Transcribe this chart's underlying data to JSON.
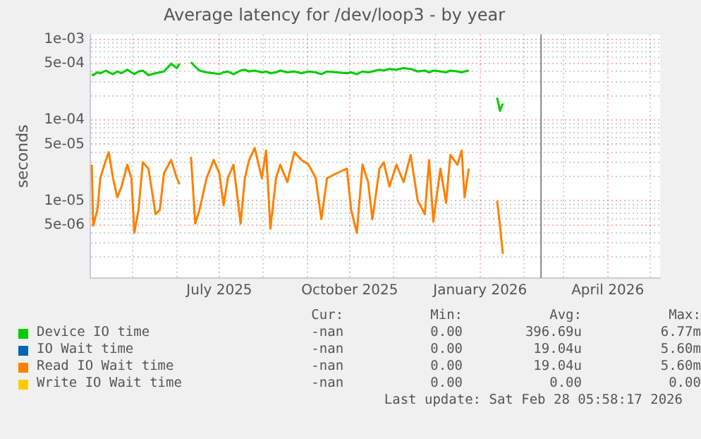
{
  "chart_data": {
    "type": "line",
    "title": "Average latency for /dev/loop3 - by year",
    "ylabel": "seconds",
    "x": [
      "2025-04-02",
      "2025-04-03",
      "2025-04-06",
      "2025-04-08",
      "2025-04-12",
      "2025-04-14",
      "2025-04-17",
      "2025-04-20",
      "2025-04-23",
      "2025-04-27",
      "2025-04-30",
      "2025-05-02",
      "2025-05-05",
      "2025-05-08",
      "2025-05-12",
      "2025-05-17",
      "2025-05-20",
      "2025-05-23",
      "2025-05-28",
      "2025-06-01",
      "2025-06-03",
      "2025-06-07",
      "2025-06-11",
      "2025-06-14",
      "2025-06-17",
      "2025-06-22",
      "2025-06-27",
      "2025-07-01",
      "2025-07-04",
      "2025-07-07",
      "2025-07-11",
      "2025-07-16",
      "2025-07-19",
      "2025-07-22",
      "2025-07-26",
      "2025-07-31",
      "2025-08-03",
      "2025-08-06",
      "2025-08-10",
      "2025-08-13",
      "2025-08-18",
      "2025-08-23",
      "2025-08-28",
      "2025-09-02",
      "2025-09-07",
      "2025-09-11",
      "2025-09-15",
      "2025-09-22",
      "2025-09-29",
      "2025-10-02",
      "2025-10-06",
      "2025-10-10",
      "2025-10-14",
      "2025-10-17",
      "2025-10-22",
      "2025-10-25",
      "2025-10-29",
      "2025-11-03",
      "2025-11-08",
      "2025-11-13",
      "2025-11-18",
      "2025-11-23",
      "2025-11-26",
      "2025-11-29",
      "2025-12-04",
      "2025-12-08",
      "2025-12-11",
      "2025-12-16",
      "2025-12-19",
      "2025-12-21",
      "2025-12-24",
      "2026-01-05",
      "2026-01-13",
      "2026-01-15",
      "2026-01-17"
    ],
    "series": [
      {
        "name": "Device IO time",
        "color": "#00cc00",
        "values": [
          0.00037,
          0.00036,
          0.00039,
          0.00038,
          0.00041,
          0.00039,
          0.00037,
          0.0004,
          0.00038,
          0.00042,
          0.00039,
          0.00037,
          0.0004,
          0.00041,
          0.00036,
          0.00038,
          0.00039,
          0.0004,
          0.0005,
          0.00044,
          0.0005,
          null,
          0.00052,
          0.00046,
          0.00041,
          0.00039,
          0.00038,
          0.00037,
          0.00039,
          0.0004,
          0.00037,
          0.00041,
          0.00042,
          0.0004,
          0.00041,
          0.00039,
          0.0004,
          0.00038,
          0.00039,
          0.00041,
          0.00039,
          0.0004,
          0.00038,
          0.0004,
          0.00039,
          0.00037,
          0.0004,
          0.00039,
          0.00038,
          0.00039,
          0.00037,
          0.0004,
          0.00039,
          0.0004,
          0.00042,
          0.00041,
          0.00043,
          0.00042,
          0.00044,
          0.00043,
          0.0004,
          0.00041,
          0.00039,
          0.00041,
          0.0004,
          0.00039,
          0.00041,
          0.0004,
          0.00039,
          0.0004,
          0.00041,
          null,
          0.00019,
          0.00013,
          0.00016
        ]
      },
      {
        "name": "IO Wait time",
        "color": "#0066b3",
        "values": [
          null,
          null,
          null,
          null,
          null,
          null,
          null,
          null,
          null,
          null,
          null,
          null,
          null,
          null,
          null,
          null,
          null,
          null,
          null,
          null,
          null,
          null,
          null,
          null,
          null,
          null,
          null,
          null,
          null,
          null,
          null,
          null,
          null,
          null,
          null,
          null,
          null,
          null,
          null,
          null,
          null,
          null,
          null,
          null,
          null,
          null,
          null,
          null,
          null,
          null,
          null,
          null,
          null,
          null,
          null,
          null,
          null,
          null,
          null,
          null,
          null,
          null,
          null,
          null,
          null,
          null,
          null,
          null,
          null,
          null,
          null,
          null,
          null,
          null,
          null
        ]
      },
      {
        "name": "Read IO Wait time",
        "color": "#ff8000",
        "values": [
          2.8e-05,
          4.9e-06,
          7.7e-06,
          1.9e-05,
          3.2e-05,
          4e-05,
          1.9e-05,
          1.1e-05,
          1.5e-05,
          2.8e-05,
          1.9e-05,
          4e-06,
          7.7e-06,
          3e-05,
          2.5e-05,
          6.8e-06,
          7.7e-06,
          2.2e-05,
          3.2e-05,
          1.9e-05,
          1.6e-05,
          null,
          3.5e-05,
          5.2e-06,
          7.7e-06,
          1.9e-05,
          3.2e-05,
          2.2e-05,
          8.8e-06,
          1.9e-05,
          2.8e-05,
          5.2e-06,
          1.9e-05,
          3.2e-05,
          4.5e-05,
          1.9e-05,
          4.2e-05,
          4.5e-06,
          1.9e-05,
          2.8e-05,
          1.7e-05,
          4e-05,
          3.2e-05,
          2.8e-05,
          1.9e-05,
          5.9e-06,
          1.9e-05,
          2.2e-05,
          2.5e-05,
          7.7e-06,
          4e-06,
          2.8e-05,
          1.7e-05,
          5.9e-06,
          2.5e-05,
          3e-05,
          1.5e-05,
          2.8e-05,
          1.7e-05,
          3.7e-05,
          1e-05,
          6.8e-06,
          3.2e-05,
          5.5e-06,
          2.5e-05,
          9.4e-06,
          3.7e-05,
          2.8e-05,
          4.2e-05,
          1.1e-05,
          2.5e-05,
          null,
          1e-05,
          5e-06,
          2.2e-06
        ]
      },
      {
        "name": "Write IO Wait time",
        "color": "#ffcc00",
        "values": [
          null,
          null,
          null,
          null,
          null,
          null,
          null,
          null,
          null,
          null,
          null,
          null,
          null,
          null,
          null,
          null,
          null,
          null,
          null,
          null,
          null,
          null,
          null,
          null,
          null,
          null,
          null,
          null,
          null,
          null,
          null,
          null,
          null,
          null,
          null,
          null,
          null,
          null,
          null,
          null,
          null,
          null,
          null,
          null,
          null,
          null,
          null,
          null,
          null,
          null,
          null,
          null,
          null,
          null,
          null,
          null,
          null,
          null,
          null,
          null,
          null,
          null,
          null,
          null,
          null,
          null,
          null,
          null,
          null,
          null,
          null,
          null,
          null,
          null,
          null
        ]
      }
    ],
    "xlim": [
      "2025-04-01",
      "2026-05-08"
    ],
    "xticks": [
      {
        "value": "2025-05-01",
        "label": null
      },
      {
        "value": "2025-06-01",
        "label": null
      },
      {
        "value": "2025-07-01",
        "label": "July 2025"
      },
      {
        "value": "2025-08-01",
        "label": null
      },
      {
        "value": "2025-09-01",
        "label": null
      },
      {
        "value": "2025-10-01",
        "label": "October 2025"
      },
      {
        "value": "2025-11-01",
        "label": null
      },
      {
        "value": "2025-12-01",
        "label": null
      },
      {
        "value": "2026-01-01",
        "label": "January 2026"
      },
      {
        "value": "2026-02-01",
        "label": null
      },
      {
        "value": "2026-03-01",
        "label": null
      },
      {
        "value": "2026-04-01",
        "label": "April 2026"
      },
      {
        "value": "2026-05-01",
        "label": null
      }
    ],
    "ylim": [
      1.1e-06,
      0.00115
    ],
    "yticks": [
      {
        "value": 2e-06,
        "label": null
      },
      {
        "value": 3e-06,
        "label": null
      },
      {
        "value": 4e-06,
        "label": null
      },
      {
        "value": 5e-06,
        "label": "5e-06"
      },
      {
        "value": 6e-06,
        "label": null
      },
      {
        "value": 7e-06,
        "label": null
      },
      {
        "value": 8e-06,
        "label": null
      },
      {
        "value": 9e-06,
        "label": null
      },
      {
        "value": 1e-05,
        "label": "1e-05"
      },
      {
        "value": 2e-05,
        "label": null
      },
      {
        "value": 3e-05,
        "label": null
      },
      {
        "value": 4e-05,
        "label": null
      },
      {
        "value": 5e-05,
        "label": "5e-05"
      },
      {
        "value": 6e-05,
        "label": null
      },
      {
        "value": 7e-05,
        "label": null
      },
      {
        "value": 8e-05,
        "label": null
      },
      {
        "value": 9e-05,
        "label": null
      },
      {
        "value": 0.0001,
        "label": "1e-04"
      },
      {
        "value": 0.0002,
        "label": null
      },
      {
        "value": 0.0003,
        "label": null
      },
      {
        "value": 0.0004,
        "label": null
      },
      {
        "value": 0.0005,
        "label": "5e-04"
      },
      {
        "value": 0.0006,
        "label": null
      },
      {
        "value": 0.0007,
        "label": null
      },
      {
        "value": 0.0008,
        "label": null
      },
      {
        "value": 0.0009,
        "label": null
      },
      {
        "value": 0.001,
        "label": "1e-03"
      }
    ],
    "log": "y",
    "grid": true,
    "marker": "none",
    "line_style": "solid",
    "legend": "bottom",
    "ref_lines": [
      {
        "axis": "x",
        "value": "2026-02-13",
        "color": "#888888"
      }
    ],
    "annotations": [
      "Cur:",
      "Min:",
      "Avg:",
      "Max:",
      "-nan",
      "0.00",
      "396.69u",
      "6.77m",
      "-nan",
      "0.00",
      "19.04u",
      "5.60m",
      "-nan",
      "0.00",
      "19.04u",
      "5.60m",
      "-nan",
      "0.00",
      "0.00",
      "0.00",
      "Last update: Sat Feb 28 05:58:17 2026"
    ]
  }
}
